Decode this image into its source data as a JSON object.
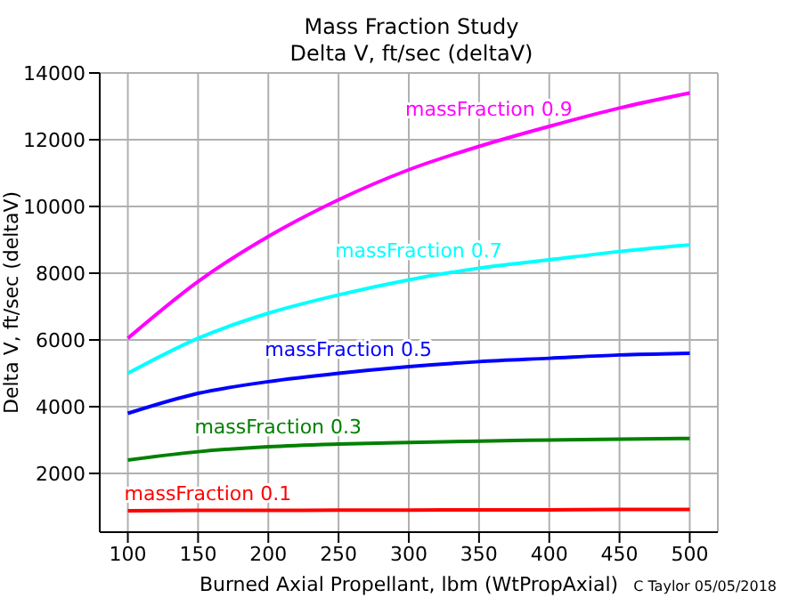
{
  "chart_data": {
    "type": "line",
    "title": "Mass Fraction Study",
    "subtitle": "Delta V, ft/sec (deltaV)",
    "xlabel": "Burned Axial Propellant, lbm (WtPropAxial)",
    "ylabel": "Delta V, ft/sec (deltaV)",
    "x": [
      100,
      150,
      200,
      250,
      300,
      350,
      400,
      450,
      500
    ],
    "series": [
      {
        "name": "massFraction 0.1",
        "color": "#ff0000",
        "values": [
          880,
          890,
          890,
          900,
          900,
          910,
          910,
          920,
          920
        ]
      },
      {
        "name": "massFraction 0.3",
        "color": "#008000",
        "values": [
          2400,
          2650,
          2800,
          2880,
          2930,
          2970,
          3000,
          3030,
          3050
        ]
      },
      {
        "name": "massFraction 0.5",
        "color": "#0000ff",
        "values": [
          3800,
          4400,
          4750,
          5000,
          5200,
          5350,
          5450,
          5550,
          5600
        ]
      },
      {
        "name": "massFraction 0.7",
        "color": "#00ffff",
        "values": [
          5000,
          6050,
          6800,
          7350,
          7800,
          8150,
          8400,
          8650,
          8850
        ]
      },
      {
        "name": "massFraction 0.9",
        "color": "#ff00ff",
        "values": [
          6050,
          7750,
          9100,
          10200,
          11100,
          11800,
          12400,
          12950,
          13400
        ]
      }
    ],
    "xlim": [
      80,
      520
    ],
    "ylim": [
      240,
      14000
    ],
    "xticks": [
      100,
      150,
      200,
      250,
      300,
      350,
      400,
      450,
      500
    ],
    "yticks": [
      2000,
      4000,
      6000,
      8000,
      10000,
      12000,
      14000
    ],
    "grid": true,
    "marker": "none",
    "line_style": "solid",
    "annotations": [
      "C Taylor 05/05/2018"
    ]
  }
}
